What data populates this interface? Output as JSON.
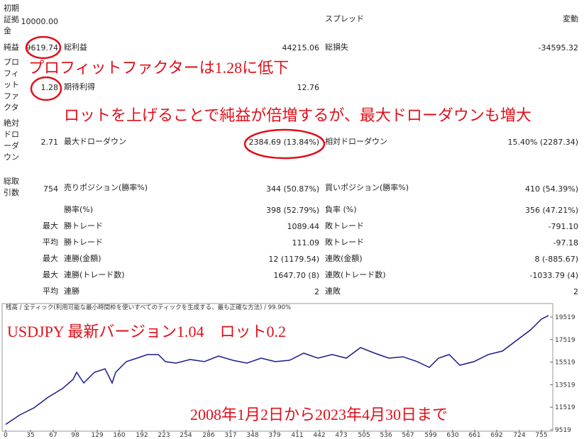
{
  "report": {
    "rows": [
      [
        "初期証拠金",
        "10000.00",
        "スプレッド",
        "変動"
      ],
      [
        "純益",
        "9619.74",
        "総利益",
        "44215.06",
        "総損失",
        "-34595.32"
      ],
      [
        "プロフィットファクタ",
        "1.28",
        "期待利得",
        "12.76"
      ],
      [
        "絶対ドローダウン",
        "2.71",
        "最大ドローダウン",
        "2384.69 (13.84%)",
        "相対ドローダウン",
        "15.40% (2287.34)"
      ],
      [
        "総取引数",
        "754",
        "売りポジション(勝率%)",
        "344 (50.87%)",
        "買いポジション(勝率%)",
        "410 (54.39%)"
      ],
      [
        "勝率(%)",
        "398 (52.79%)",
        "負率 (%)",
        "356 (47.21%)"
      ],
      [
        "最大",
        "勝トレード",
        "1089.44",
        "敗トレード",
        "-791.10"
      ],
      [
        "平均",
        "勝トレード",
        "111.09",
        "敗トレード",
        "-97.18"
      ],
      [
        "最大",
        "連勝(金額)",
        "12 (1179.54)",
        "連敗(金額)",
        "8 (-885.67)"
      ],
      [
        "最大",
        "連勝(トレード数)",
        "1647.70 (8)",
        "連敗(トレード数)",
        "-1033.79 (4)"
      ],
      [
        "平均",
        "連勝",
        "2",
        "連敗",
        "2"
      ]
    ],
    "annotations": [
      "プロフィットファクターは1.28に低下",
      "ロットを上げることで純益が倍増するが、最大ドローダウンも増大"
    ]
  },
  "chart_data": {
    "type": "line",
    "title": "残高 / 全ティック(利用可能な最小時間枠を使いすべてのティックを生成する、最も正確な方法) / 99.90%",
    "annotations": [
      "USDJPY  最新バージョン1.04　ロット0.2",
      "2008年1月2日から2023年4月30日まで"
    ],
    "x": [
      0,
      20,
      40,
      60,
      80,
      95,
      100,
      110,
      125,
      140,
      150,
      155,
      170,
      185,
      200,
      215,
      225,
      240,
      260,
      280,
      300,
      320,
      340,
      360,
      380,
      400,
      420,
      440,
      460,
      480,
      500,
      520,
      540,
      560,
      580,
      597,
      610,
      625,
      640,
      660,
      680,
      700,
      720,
      740,
      755,
      765
    ],
    "series": [
      {
        "name": "残高",
        "color": "#1a1a8c",
        "values": [
          10000,
          10840,
          11470,
          12410,
          13170,
          13985,
          14610,
          13670,
          14610,
          14930,
          13670,
          14610,
          15560,
          15870,
          16190,
          16190,
          15560,
          15430,
          15750,
          15560,
          16060,
          15680,
          15430,
          15870,
          15560,
          15680,
          16310,
          15870,
          16190,
          15870,
          16810,
          16310,
          15870,
          15990,
          15560,
          15050,
          15870,
          16190,
          15240,
          15560,
          16190,
          16500,
          17440,
          18390,
          19330,
          19650
        ]
      }
    ],
    "xlim": [
      0,
      770
    ],
    "xticks": [
      0,
      35,
      67,
      98,
      129,
      160,
      192,
      223,
      254,
      286,
      317,
      348,
      379,
      411,
      442,
      473,
      505,
      536,
      567,
      599,
      630,
      661,
      692,
      724,
      755
    ],
    "ylim": [
      9519,
      20713
    ],
    "yticks": [
      9519,
      11519,
      13519,
      15519,
      17519,
      19519
    ]
  }
}
